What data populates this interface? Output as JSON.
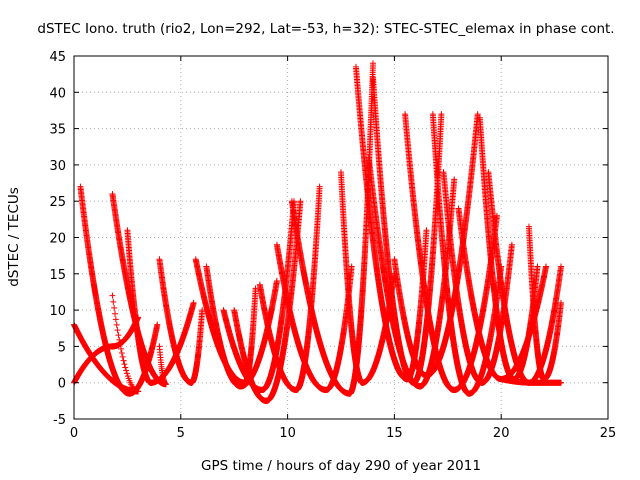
{
  "chart_data": {
    "type": "scatter",
    "title": "dSTEC Iono. truth (rio2, Lon=292, Lat=-53, h=32): STEC-STEC_elemax in phase cont.",
    "xlabel": "GPS time / hours of day 290 of year 2011",
    "ylabel": "dSTEC  / TECUs",
    "xlim": [
      0,
      25
    ],
    "ylim": [
      -5,
      45
    ],
    "xticks": [
      "0",
      "5",
      "10",
      "15",
      "20",
      "25"
    ],
    "yticks": [
      "-5",
      "0",
      "5",
      "10",
      "15",
      "20",
      "25",
      "30",
      "35",
      "40",
      "45"
    ],
    "grid": true,
    "marker": "plus",
    "color": "#ff0000",
    "series": [
      {
        "arcs": [
          [
            0.0,
            8.0,
            3.0,
            -1.2,
            1.8,
            12.0
          ]
        ]
      },
      {
        "arcs": [
          [
            0.0,
            0.0,
            1.8,
            5.0,
            3.0,
            9.0
          ]
        ]
      },
      {
        "arcs": [
          [
            0.3,
            27.0,
            2.6,
            -1.5,
            3.9,
            8.0
          ]
        ]
      },
      {
        "arcs": [
          [
            1.8,
            26.0,
            4.3,
            -0.2,
            4.0,
            5.0
          ]
        ]
      },
      {
        "arcs": [
          [
            2.5,
            21.0,
            3.6,
            0.0,
            5.6,
            11.0
          ]
        ]
      },
      {
        "arcs": [
          [
            4.0,
            17.0,
            5.5,
            0.0,
            6.0,
            10.0
          ]
        ]
      },
      {
        "arcs": [
          [
            5.7,
            17.0,
            8.0,
            0.0,
            8.5,
            13.0
          ]
        ]
      },
      {
        "arcs": [
          [
            6.2,
            16.0,
            7.8,
            -0.5,
            9.5,
            14.0
          ]
        ]
      },
      {
        "arcs": [
          [
            7.0,
            10.0,
            8.8,
            -1.0,
            10.3,
            25.0
          ]
        ]
      },
      {
        "arcs": [
          [
            7.5,
            10.0,
            9.0,
            -2.5,
            10.6,
            25.0
          ]
        ]
      },
      {
        "arcs": [
          [
            8.7,
            13.5,
            10.4,
            -1.0,
            11.5,
            27.0
          ]
        ]
      },
      {
        "arcs": [
          [
            9.5,
            19.0,
            11.8,
            -1.0,
            13.0,
            16.0
          ]
        ]
      },
      {
        "arcs": [
          [
            10.2,
            25.0,
            12.9,
            -1.5,
            14.0,
            44.0
          ]
        ]
      },
      {
        "arcs": [
          [
            12.5,
            29.0,
            13.5,
            0.0,
            15.0,
            15.0
          ]
        ]
      },
      {
        "arcs": [
          [
            13.2,
            43.5,
            15.6,
            0.5,
            16.5,
            21.0
          ]
        ]
      },
      {
        "arcs": [
          [
            14.0,
            42.0,
            15.9,
            0.0,
            17.2,
            37.0
          ]
        ]
      },
      {
        "arcs": [
          [
            13.8,
            31.0,
            16.2,
            -0.5,
            17.8,
            28.0
          ]
        ]
      },
      {
        "arcs": [
          [
            15.0,
            17.0,
            16.5,
            1.0,
            18.9,
            37.0
          ]
        ]
      },
      {
        "arcs": [
          [
            15.5,
            37.0,
            17.8,
            -1.0,
            19.8,
            23.0
          ]
        ]
      },
      {
        "arcs": [
          [
            16.8,
            37.0,
            18.5,
            -1.5,
            20.0,
            16.0
          ]
        ]
      },
      {
        "arcs": [
          [
            17.3,
            29.0,
            19.1,
            0.0,
            20.5,
            19.0
          ]
        ]
      },
      {
        "arcs": [
          [
            18.0,
            24.0,
            20.0,
            0.5,
            22.1,
            16.0
          ]
        ]
      },
      {
        "arcs": [
          [
            19.0,
            36.5,
            20.6,
            0.5,
            21.7,
            16.0
          ]
        ]
      },
      {
        "arcs": [
          [
            19.4,
            29.0,
            21.3,
            0.0,
            22.8,
            16.0
          ]
        ]
      },
      {
        "arcs": [
          [
            21.3,
            21.5,
            22.0,
            0.5,
            22.8,
            11.0
          ]
        ]
      },
      {
        "arcs": [
          [
            20.0,
            0.5,
            21.5,
            0.0,
            22.8,
            0.0
          ]
        ]
      }
    ]
  }
}
